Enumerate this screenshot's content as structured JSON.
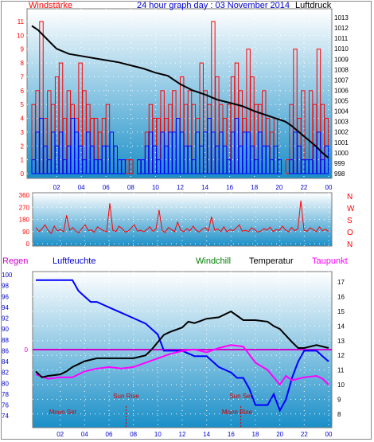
{
  "colors": {
    "wind_red": "#ff0000",
    "wind_blue": "#0000ff",
    "pressure": "#000000",
    "direction": "#ff0000",
    "humidity": "#0000ff",
    "temperature": "#000000",
    "windchill": "#008000",
    "dewpoint": "#ff00ff",
    "bg_top": "#ffffff",
    "bg_bottom": "#1a8fc8"
  },
  "header": {
    "left": "Windstärke",
    "center": "24 hour graph day : 03 November 2014",
    "right": "Luftdruck"
  },
  "lower_header": {
    "regen": "Regen",
    "luftfeuchte": "Luftfeuchte",
    "windchill": "Windchill",
    "temperatur": "Temperatur",
    "taupunkt": "Taupunkt"
  },
  "x_ticks": [
    "02",
    "04",
    "06",
    "08",
    "10",
    "12",
    "14",
    "16",
    "18",
    "20",
    "22",
    "00"
  ],
  "chart_data": [
    {
      "type": "line",
      "name": "wind-pressure",
      "yleft_ticks": [
        "0",
        "1",
        "2",
        "3",
        "4",
        "5",
        "6",
        "7",
        "8",
        "9",
        "10",
        "11"
      ],
      "yleft_range": [
        0,
        11
      ],
      "yright_ticks": [
        "998",
        "999",
        "1000",
        "1001",
        "1002",
        "1003",
        "1004",
        "1005",
        "1006",
        "1007",
        "1008",
        "1009",
        "1010",
        "1011",
        "1012",
        "1013"
      ],
      "yright_range": [
        998,
        1013
      ],
      "x_range_hours": [
        0,
        24
      ],
      "pressure": {
        "x": [
          0.0,
          0.5,
          1.0,
          1.5,
          2.0,
          3.0,
          4.0,
          5.0,
          6.0,
          7.0,
          8.0,
          9.0,
          10.0,
          11.0,
          11.5,
          12.0,
          13.0,
          14.0,
          15.0,
          16.0,
          17.0,
          18.0,
          19.0,
          20.0,
          20.5,
          21.0,
          22.0,
          23.0,
          23.5,
          24.0
        ],
        "y": [
          1012.2,
          1011.8,
          1011.2,
          1010.6,
          1010.0,
          1009.5,
          1009.3,
          1009.1,
          1008.9,
          1008.7,
          1008.4,
          1008.1,
          1007.7,
          1007.4,
          1007.0,
          1006.6,
          1006.0,
          1005.6,
          1005.1,
          1004.8,
          1004.5,
          1004.0,
          1003.6,
          1003.2,
          1003.0,
          1002.6,
          1001.6,
          1000.6,
          1000.0,
          999.5
        ]
      },
      "wind_red_series": [
        5,
        6,
        11,
        4,
        6,
        5,
        7,
        8,
        4,
        6,
        5,
        4,
        8,
        6,
        5,
        4,
        4,
        3,
        4,
        5,
        0,
        0,
        0,
        0,
        1,
        1,
        0,
        1,
        0,
        3,
        5,
        4,
        4,
        6,
        4,
        5,
        6,
        4,
        7,
        5,
        6,
        5,
        4,
        8,
        6,
        5,
        11,
        7,
        5,
        4,
        5,
        7,
        8,
        6,
        4,
        9,
        7,
        5,
        5,
        6,
        4,
        3,
        4,
        0,
        0,
        1,
        5,
        9,
        4,
        6,
        0,
        6,
        5,
        9,
        5,
        4
      ],
      "wind_blue_series": [
        1,
        3,
        4,
        2,
        1,
        3,
        2,
        3,
        1,
        2,
        4,
        3,
        2,
        1,
        3,
        2,
        1,
        1,
        2,
        2,
        3,
        2,
        1,
        1,
        0,
        0,
        0,
        1,
        1,
        2,
        3,
        2,
        1,
        3,
        2,
        3,
        3,
        4,
        3,
        2,
        2,
        1,
        3,
        2,
        3,
        4,
        3,
        2,
        3,
        2,
        1,
        3,
        4,
        2,
        3,
        3,
        2,
        1,
        3,
        2,
        2,
        1,
        2,
        1,
        0,
        0,
        1,
        3,
        2,
        1,
        1,
        1,
        2,
        3,
        1,
        2
      ]
    },
    {
      "type": "line",
      "name": "wind-direction",
      "y_ticks": [
        "360",
        "270",
        "180",
        "90",
        "0"
      ],
      "y_range": [
        0,
        360
      ],
      "compass_labels": [
        "N",
        "W",
        "S",
        "O",
        "N"
      ],
      "direction_series": [
        120,
        90,
        110,
        140,
        100,
        75,
        130,
        95,
        105,
        88,
        210,
        100,
        120,
        92,
        80,
        115,
        140,
        98,
        102,
        85,
        125,
        110,
        96,
        88,
        300,
        100,
        90,
        130,
        112,
        86,
        94,
        118,
        140,
        92,
        100,
        88,
        105,
        125,
        90,
        110,
        250,
        96,
        84,
        120,
        105,
        90,
        160,
        100,
        88,
        112,
        95,
        130,
        100,
        86,
        108,
        120,
        94,
        200,
        100,
        110,
        90,
        125,
        88,
        104,
        96,
        116,
        140,
        92,
        100,
        90,
        118,
        104,
        86,
        94,
        112,
        100,
        122,
        90,
        106,
        98,
        130,
        102,
        88,
        120,
        96,
        110,
        320,
        100,
        92,
        118,
        104,
        90,
        125,
        96,
        108,
        90
      ]
    },
    {
      "type": "line",
      "name": "temperature-humidity",
      "humidity_ticks": [
        "74",
        "76",
        "78",
        "80",
        "82",
        "84",
        "86",
        "88",
        "90",
        "92",
        "94",
        "96",
        "98",
        "100"
      ],
      "humidity_range": [
        73,
        100
      ],
      "temp_ticks": [
        "8",
        "9",
        "10",
        "11",
        "12",
        "13",
        "14",
        "15",
        "16",
        "17"
      ],
      "temp_range": [
        7.5,
        17.5
      ],
      "rain_zero_label": "0",
      "humidity": {
        "x": [
          0.0,
          1.0,
          2.0,
          3.0,
          3.5,
          4.0,
          4.5,
          5.0,
          6.0,
          7.0,
          8.0,
          9.0,
          10.0,
          10.5,
          11.0,
          12.0,
          13.0,
          14.0,
          14.5,
          15.0,
          16.0,
          16.5,
          17.0,
          17.5,
          18.0,
          19.0,
          19.5,
          20.0,
          20.5,
          21.0,
          21.5,
          22.0,
          23.0,
          23.5,
          24.0
        ],
        "y": [
          99,
          99,
          99,
          99,
          97,
          96,
          95,
          95,
          94,
          93,
          92,
          91,
          89,
          86,
          86,
          86,
          85,
          85,
          84,
          83,
          82,
          81,
          81,
          79,
          76,
          76,
          78,
          75,
          77,
          81,
          84,
          86,
          86,
          85,
          84
        ]
      },
      "temperature": {
        "x": [
          0.0,
          0.5,
          1.0,
          2.0,
          2.5,
          3.0,
          4.0,
          5.0,
          6.0,
          7.0,
          8.0,
          9.0,
          9.5,
          10.0,
          10.5,
          11.0,
          12.0,
          12.5,
          13.0,
          14.0,
          15.0,
          15.5,
          16.0,
          16.5,
          17.0,
          18.0,
          19.0,
          19.5,
          20.0,
          21.0,
          21.5,
          22.0,
          23.0,
          24.0
        ],
        "y": [
          10.9,
          10.5,
          10.6,
          10.7,
          10.9,
          11.2,
          11.6,
          11.8,
          11.8,
          11.8,
          11.8,
          12.0,
          12.4,
          12.9,
          13.4,
          13.6,
          13.9,
          14.3,
          14.2,
          14.5,
          14.6,
          14.8,
          15.0,
          14.7,
          14.4,
          14.4,
          14.3,
          14.0,
          13.8,
          12.9,
          12.5,
          12.5,
          12.7,
          12.5
        ]
      },
      "dewpoint": {
        "x": [
          0.0,
          1.0,
          2.0,
          3.0,
          4.0,
          5.0,
          6.0,
          7.0,
          8.0,
          9.0,
          10.0,
          11.0,
          12.0,
          13.0,
          14.0,
          15.0,
          16.0,
          17.0,
          18.0,
          19.0,
          20.0,
          20.5,
          21.0,
          22.0,
          23.0,
          23.5,
          24.0
        ],
        "y": [
          10.7,
          10.4,
          10.5,
          10.5,
          10.9,
          11.1,
          11.2,
          11.1,
          11.2,
          11.5,
          11.8,
          12.1,
          12.3,
          12.4,
          12.2,
          12.5,
          12.7,
          12.6,
          11.5,
          11.0,
          10.0,
          10.6,
          10.3,
          10.5,
          10.6,
          10.4,
          10.0
        ]
      },
      "annotations": [
        {
          "text": "Moon Set",
          "hour": 2.2,
          "color": "#cc0000"
        },
        {
          "text": "Sun Rise",
          "hour": 7.4,
          "color": "#cc0000"
        },
        {
          "text": "Moon Rise",
          "hour": 16.5,
          "color": "#cc0000"
        },
        {
          "text": "Sun Set",
          "hour": 16.8,
          "color": "#cc0000"
        }
      ]
    }
  ]
}
